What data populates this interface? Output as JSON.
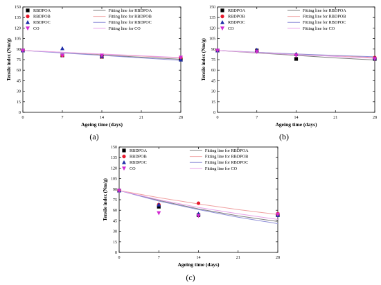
{
  "chart_data": [
    {
      "panel_label": "(a)",
      "type": "scatter",
      "xlabel": "Ageing time (days)",
      "ylabel": "Tensile index (Nm/g)",
      "xlim": [
        0,
        28
      ],
      "ylim": [
        0,
        150
      ],
      "x_ticks": [
        0,
        7,
        14,
        21,
        28
      ],
      "y_ticks": [
        0,
        15,
        30,
        45,
        60,
        75,
        90,
        105,
        120,
        135,
        150
      ],
      "legend_position": "top",
      "series": [
        {
          "name": "RBDPOA",
          "marker": "square",
          "color": "#000000",
          "x": [
            0,
            7,
            14,
            28
          ],
          "y": [
            88,
            81,
            79,
            75
          ]
        },
        {
          "name": "RBDPOB",
          "marker": "circle",
          "color": "#e8192c",
          "x": [
            0,
            7,
            14,
            28
          ],
          "y": [
            88,
            81,
            79,
            78
          ]
        },
        {
          "name": "RBDPOC",
          "marker": "triangle-up",
          "color": "#1f2ea8",
          "x": [
            0,
            7,
            14,
            28
          ],
          "y": [
            88,
            91,
            80,
            75
          ]
        },
        {
          "name": "CO",
          "marker": "triangle-down",
          "color": "#d22ad2",
          "x": [
            0,
            7,
            14,
            28
          ],
          "y": [
            88,
            81,
            81,
            78
          ]
        }
      ],
      "fit_lines": [
        {
          "name": "Fitting line for RBDPOA",
          "color": "#7f7f7f",
          "x": [
            0,
            7,
            14,
            21,
            28
          ],
          "y": [
            88,
            85,
            81.5,
            78.5,
            75.5
          ]
        },
        {
          "name": "Fitting line for RBDPOB",
          "color": "#f0a0a0",
          "x": [
            0,
            7,
            14,
            21,
            28
          ],
          "y": [
            88,
            85.5,
            82.5,
            80,
            77.5
          ]
        },
        {
          "name": "Fitting line for RBDPOC",
          "color": "#8f8fd8",
          "x": [
            0,
            7,
            14,
            21,
            28
          ],
          "y": [
            88,
            84.5,
            81,
            77.5,
            74
          ]
        },
        {
          "name": "Fitting line for CO",
          "color": "#e8a0e8",
          "x": [
            0,
            7,
            14,
            21,
            28
          ],
          "y": [
            88,
            85.5,
            83,
            80.5,
            78
          ]
        }
      ]
    },
    {
      "panel_label": "(b)",
      "type": "scatter",
      "xlabel": "Ageing time (days)",
      "ylabel": "Tensile index (Nm/g)",
      "xlim": [
        0,
        28
      ],
      "ylim": [
        0,
        150
      ],
      "x_ticks": [
        0,
        7,
        14,
        21,
        28
      ],
      "y_ticks": [
        0,
        15,
        30,
        45,
        60,
        75,
        90,
        105,
        120,
        135,
        150
      ],
      "legend_position": "top",
      "series": [
        {
          "name": "RBDPOA",
          "marker": "square",
          "color": "#000000",
          "x": [
            0,
            7,
            14,
            28
          ],
          "y": [
            88,
            88,
            76,
            76
          ]
        },
        {
          "name": "RBDPOB",
          "marker": "circle",
          "color": "#e8192c",
          "x": [
            0,
            7,
            14,
            28
          ],
          "y": [
            88,
            88,
            82,
            78
          ]
        },
        {
          "name": "RBDPOC",
          "marker": "triangle-up",
          "color": "#1f2ea8",
          "x": [
            0,
            7,
            14,
            28
          ],
          "y": [
            88,
            89,
            83,
            77
          ]
        },
        {
          "name": "CO",
          "marker": "triangle-down",
          "color": "#d22ad2",
          "x": [
            0,
            7,
            14,
            28
          ],
          "y": [
            88,
            86,
            81,
            76
          ]
        }
      ],
      "fit_lines": [
        {
          "name": "Fitting line for RBDPOA",
          "color": "#7f7f7f",
          "x": [
            0,
            7,
            14,
            21,
            28
          ],
          "y": [
            88,
            84.5,
            81,
            77.5,
            74.5
          ]
        },
        {
          "name": "Fitting line for RBDPOB",
          "color": "#f0a0a0",
          "x": [
            0,
            7,
            14,
            21,
            28
          ],
          "y": [
            88,
            85.5,
            83,
            80.5,
            78
          ]
        },
        {
          "name": "Fitting line for RBDPOC",
          "color": "#8f8fd8",
          "x": [
            0,
            7,
            14,
            21,
            28
          ],
          "y": [
            88,
            85.5,
            83,
            81,
            79
          ]
        },
        {
          "name": "Fitting line for  CO",
          "color": "#e8a0e8",
          "x": [
            0,
            7,
            14,
            21,
            28
          ],
          "y": [
            88,
            85,
            82,
            79.5,
            77
          ]
        }
      ]
    },
    {
      "panel_label": "(c)",
      "type": "scatter",
      "xlabel": "Ageing time (days)",
      "ylabel": "Tensile index (Nm/g)",
      "xlim": [
        0,
        28
      ],
      "ylim": [
        0,
        150
      ],
      "x_ticks": [
        0,
        7,
        14,
        21,
        28
      ],
      "y_ticks": [
        0,
        15,
        30,
        45,
        60,
        75,
        90,
        105,
        120,
        135,
        150
      ],
      "legend_position": "top",
      "series": [
        {
          "name": "RBDPOA",
          "marker": "square",
          "color": "#000000",
          "x": [
            0,
            7,
            14,
            28
          ],
          "y": [
            88,
            65,
            53,
            53
          ]
        },
        {
          "name": "RBDPOB",
          "marker": "circle",
          "color": "#e8192c",
          "x": [
            0,
            7,
            14,
            28
          ],
          "y": [
            88,
            68,
            70,
            55
          ]
        },
        {
          "name": "RBDPOC",
          "marker": "triangle-up",
          "color": "#1f2ea8",
          "x": [
            0,
            7,
            14,
            28
          ],
          "y": [
            88,
            68,
            55,
            53
          ]
        },
        {
          "name": "CO",
          "marker": "triangle-down",
          "color": "#d22ad2",
          "x": [
            0,
            7,
            14,
            28
          ],
          "y": [
            88,
            56,
            52,
            54
          ]
        }
      ],
      "fit_lines": [
        {
          "name": "Fitting line for RBDPOA",
          "color": "#7f7f7f",
          "x": [
            0,
            7,
            14,
            21,
            28
          ],
          "y": [
            88,
            74,
            62,
            52,
            44
          ]
        },
        {
          "name": "Fitting line for RBDPOB",
          "color": "#f0a0a0",
          "x": [
            0,
            7,
            14,
            21,
            28
          ],
          "y": [
            88,
            78,
            69,
            61,
            54
          ]
        },
        {
          "name": "Fitting line for RBDPOC",
          "color": "#8f8fd8",
          "x": [
            0,
            7,
            14,
            21,
            28
          ],
          "y": [
            88,
            73,
            61,
            50,
            41
          ]
        },
        {
          "name": "Fitting line for CO",
          "color": "#e8a0e8",
          "x": [
            0,
            7,
            14,
            21,
            28
          ],
          "y": [
            88,
            75,
            64,
            55,
            47
          ]
        }
      ]
    }
  ]
}
